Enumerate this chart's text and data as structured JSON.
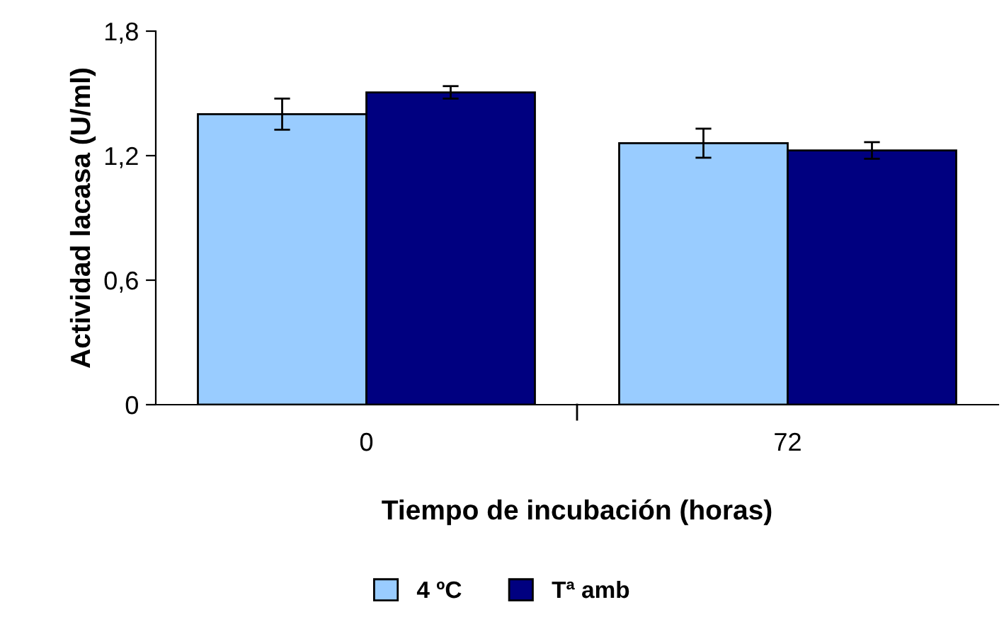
{
  "chart_data": {
    "type": "bar",
    "xlabel": "Tiempo de incubación (horas)",
    "ylabel": "Actividad lacasa (U/ml)",
    "categories": [
      "0",
      "72"
    ],
    "series": [
      {
        "name": "4 ºC",
        "color": "#99ccff",
        "values": [
          1.4,
          1.26
        ],
        "errors": [
          0.075,
          0.07
        ]
      },
      {
        "name": "Tª amb",
        "color": "#000080",
        "values": [
          1.505,
          1.225
        ],
        "errors": [
          0.03,
          0.04
        ]
      }
    ],
    "ylim": [
      0,
      1.8
    ],
    "yticks": [
      0,
      {
        "value": 0.6,
        "label": "0,6"
      },
      {
        "value": 1.2,
        "label": "1,2"
      },
      {
        "value": 1.8,
        "label": "1,8"
      }
    ],
    "grid": false,
    "legend": "bottom"
  }
}
